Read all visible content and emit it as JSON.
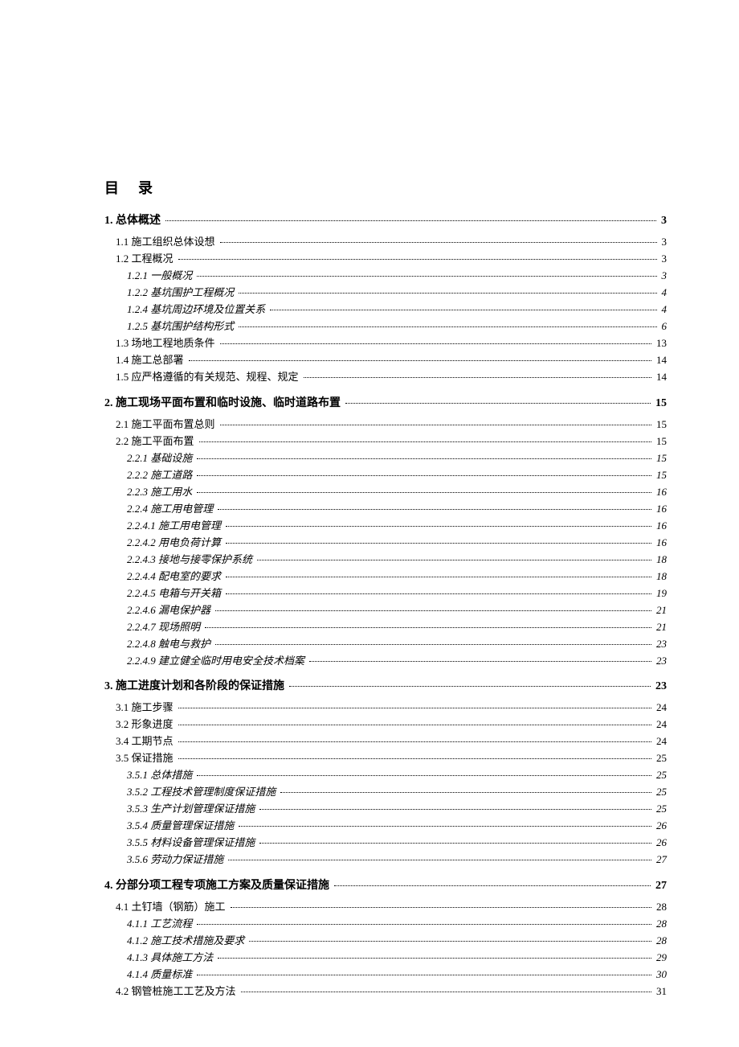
{
  "title": "目录",
  "toc": [
    {
      "level": 0,
      "label": "1. 总体概述",
      "page": "3",
      "head": true
    },
    {
      "level": 1,
      "label": "1.1 施工组织总体设想",
      "page": "3"
    },
    {
      "level": 1,
      "label": "1.2 工程概况",
      "page": "3"
    },
    {
      "level": 2,
      "label": "1.2.1 一般概况",
      "page": "3"
    },
    {
      "level": 2,
      "label": "1.2.2 基坑围护工程概况",
      "page": "4"
    },
    {
      "level": 2,
      "label": "1.2.4 基坑周边环境及位置关系",
      "page": "4"
    },
    {
      "level": 2,
      "label": "1.2.5 基坑围护结构形式",
      "page": "6"
    },
    {
      "level": 1,
      "label": "1.3 场地工程地质条件",
      "page": "13"
    },
    {
      "level": 1,
      "label": "1.4 施工总部署",
      "page": "14"
    },
    {
      "level": 1,
      "label": "1.5 应严格遵循的有关规范、规程、规定",
      "page": "14"
    },
    {
      "level": 0,
      "label": "2. 施工现场平面布置和临时设施、临时道路布置",
      "page": "15",
      "head": true
    },
    {
      "level": 1,
      "label": "2.1 施工平面布置总则",
      "page": "15"
    },
    {
      "level": 1,
      "label": "2.2 施工平面布置",
      "page": "15"
    },
    {
      "level": 2,
      "label": "2.2.1 基础设施",
      "page": "15"
    },
    {
      "level": 2,
      "label": "2.2.2 施工道路",
      "page": "15"
    },
    {
      "level": 2,
      "label": "2.2.3 施工用水",
      "page": "16"
    },
    {
      "level": 2,
      "label": "2.2.4 施工用电管理",
      "page": "16"
    },
    {
      "level": 2,
      "label": "2.2.4.1 施工用电管理",
      "page": "16"
    },
    {
      "level": 2,
      "label": "2.2.4.2 用电负荷计算",
      "page": "16"
    },
    {
      "level": 2,
      "label": "2.2.4.3 接地与接零保护系统",
      "page": "18"
    },
    {
      "level": 2,
      "label": "2.2.4.4 配电室的要求",
      "page": "18"
    },
    {
      "level": 2,
      "label": "2.2.4.5 电箱与开关箱",
      "page": "19"
    },
    {
      "level": 2,
      "label": "2.2.4.6 漏电保护器",
      "page": "21"
    },
    {
      "level": 2,
      "label": "2.2.4.7 现场照明",
      "page": "21"
    },
    {
      "level": 2,
      "label": "2.2.4.8 触电与救护",
      "page": "23"
    },
    {
      "level": 2,
      "label": "2.2.4.9 建立健全临时用电安全技术档案",
      "page": "23"
    },
    {
      "level": 0,
      "label": "3. 施工进度计划和各阶段的保证措施",
      "page": "23",
      "head": true
    },
    {
      "level": 1,
      "label": "3.1 施工步骤",
      "page": "24"
    },
    {
      "level": 1,
      "label": "3.2 形象进度",
      "page": "24"
    },
    {
      "level": 1,
      "label": "3.4 工期节点",
      "page": "24"
    },
    {
      "level": 1,
      "label": "3.5 保证措施",
      "page": "25"
    },
    {
      "level": 2,
      "label": "3.5.1 总体措施",
      "page": "25"
    },
    {
      "level": 2,
      "label": "3.5.2 工程技术管理制度保证措施",
      "page": "25"
    },
    {
      "level": 2,
      "label": "3.5.3 生产计划管理保证措施",
      "page": "25"
    },
    {
      "level": 2,
      "label": "3.5.4 质量管理保证措施",
      "page": "26"
    },
    {
      "level": 2,
      "label": "3.5.5 材料设备管理保证措施",
      "page": "26"
    },
    {
      "level": 2,
      "label": "3.5.6 劳动力保证措施",
      "page": "27"
    },
    {
      "level": 0,
      "label": "4. 分部分项工程专项施工方案及质量保证措施",
      "page": "27",
      "head": true
    },
    {
      "level": 1,
      "label": "4.1 土钉墙（钢筋）施工",
      "page": "28"
    },
    {
      "level": 2,
      "label": "4.1.1 工艺流程",
      "page": "28"
    },
    {
      "level": 2,
      "label": "4.1.2 施工技术措施及要求",
      "page": "28"
    },
    {
      "level": 2,
      "label": "4.1.3 具体施工方法",
      "page": "29"
    },
    {
      "level": 2,
      "label": "4.1.4 质量标准",
      "page": "30"
    },
    {
      "level": 1,
      "label": "4.2 钢管桩施工工艺及方法",
      "page": "31"
    }
  ]
}
